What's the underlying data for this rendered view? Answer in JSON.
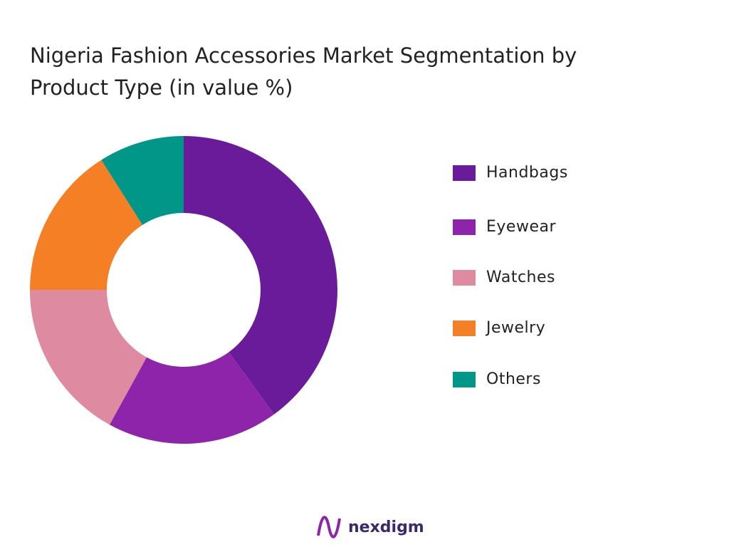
{
  "chart_data": {
    "type": "donut",
    "title": [
      "Nigeria Fashion Accessories Market Segmentation by",
      "Product Type (in value %)"
    ],
    "categories": [
      "Handbags",
      "Eyewear",
      "Watches",
      "Jewelry",
      "Others"
    ],
    "values": [
      40,
      18,
      17,
      16,
      9
    ],
    "colors": [
      "#6a1b9a",
      "#8e24aa",
      "#de8aa0",
      "#f57f24",
      "#009688"
    ]
  },
  "brand": "nexdigm"
}
